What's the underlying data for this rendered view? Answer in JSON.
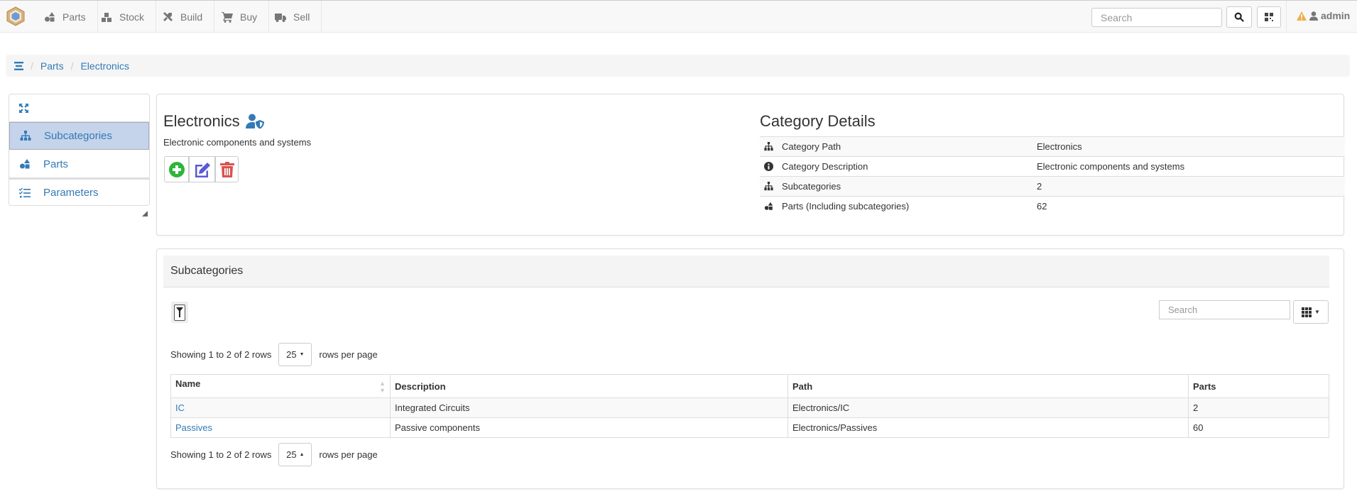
{
  "navbar": {
    "items": [
      {
        "label": "Parts",
        "icon": "shapes-icon"
      },
      {
        "label": "Stock",
        "icon": "boxes-icon"
      },
      {
        "label": "Build",
        "icon": "tools-icon"
      },
      {
        "label": "Buy",
        "icon": "cart-icon"
      },
      {
        "label": "Sell",
        "icon": "truck-icon"
      }
    ],
    "search_placeholder": "Search",
    "user": "admin",
    "warning_color": "#f0ad4e"
  },
  "breadcrumb": {
    "items": [
      "Parts",
      "Electronics"
    ]
  },
  "sidebar": {
    "items": [
      {
        "label": "Subcategories",
        "active": true
      },
      {
        "label": "Parts"
      },
      {
        "label": "Parameters"
      }
    ]
  },
  "category": {
    "title": "Electronics",
    "description": "Electronic components and systems",
    "action_colors": {
      "add": "#2db63a",
      "edit": "#5a5ad6",
      "delete": "#d9534f"
    }
  },
  "details": {
    "title": "Category Details",
    "rows": [
      {
        "icon": "sitemap-icon",
        "label": "Category Path",
        "value": "Electronics"
      },
      {
        "icon": "info-icon",
        "label": "Category Description",
        "value": "Electronic components and systems"
      },
      {
        "icon": "sitemap-icon",
        "label": "Subcategories",
        "value": "2"
      },
      {
        "icon": "shapes-icon",
        "label": "Parts (Including subcategories)",
        "value": "62"
      }
    ]
  },
  "subcategories": {
    "title": "Subcategories",
    "search_placeholder": "Search",
    "showing": "Showing 1 to 2 of 2 rows",
    "page_size": "25",
    "rows_per_page": "rows per page",
    "columns": [
      "Name",
      "Description",
      "Path",
      "Parts"
    ],
    "rows": [
      {
        "name": "IC",
        "description": "Integrated Circuits",
        "path": "Electronics/IC",
        "parts": "2"
      },
      {
        "name": "Passives",
        "description": "Passive components",
        "path": "Electronics/Passives",
        "parts": "60"
      }
    ]
  }
}
